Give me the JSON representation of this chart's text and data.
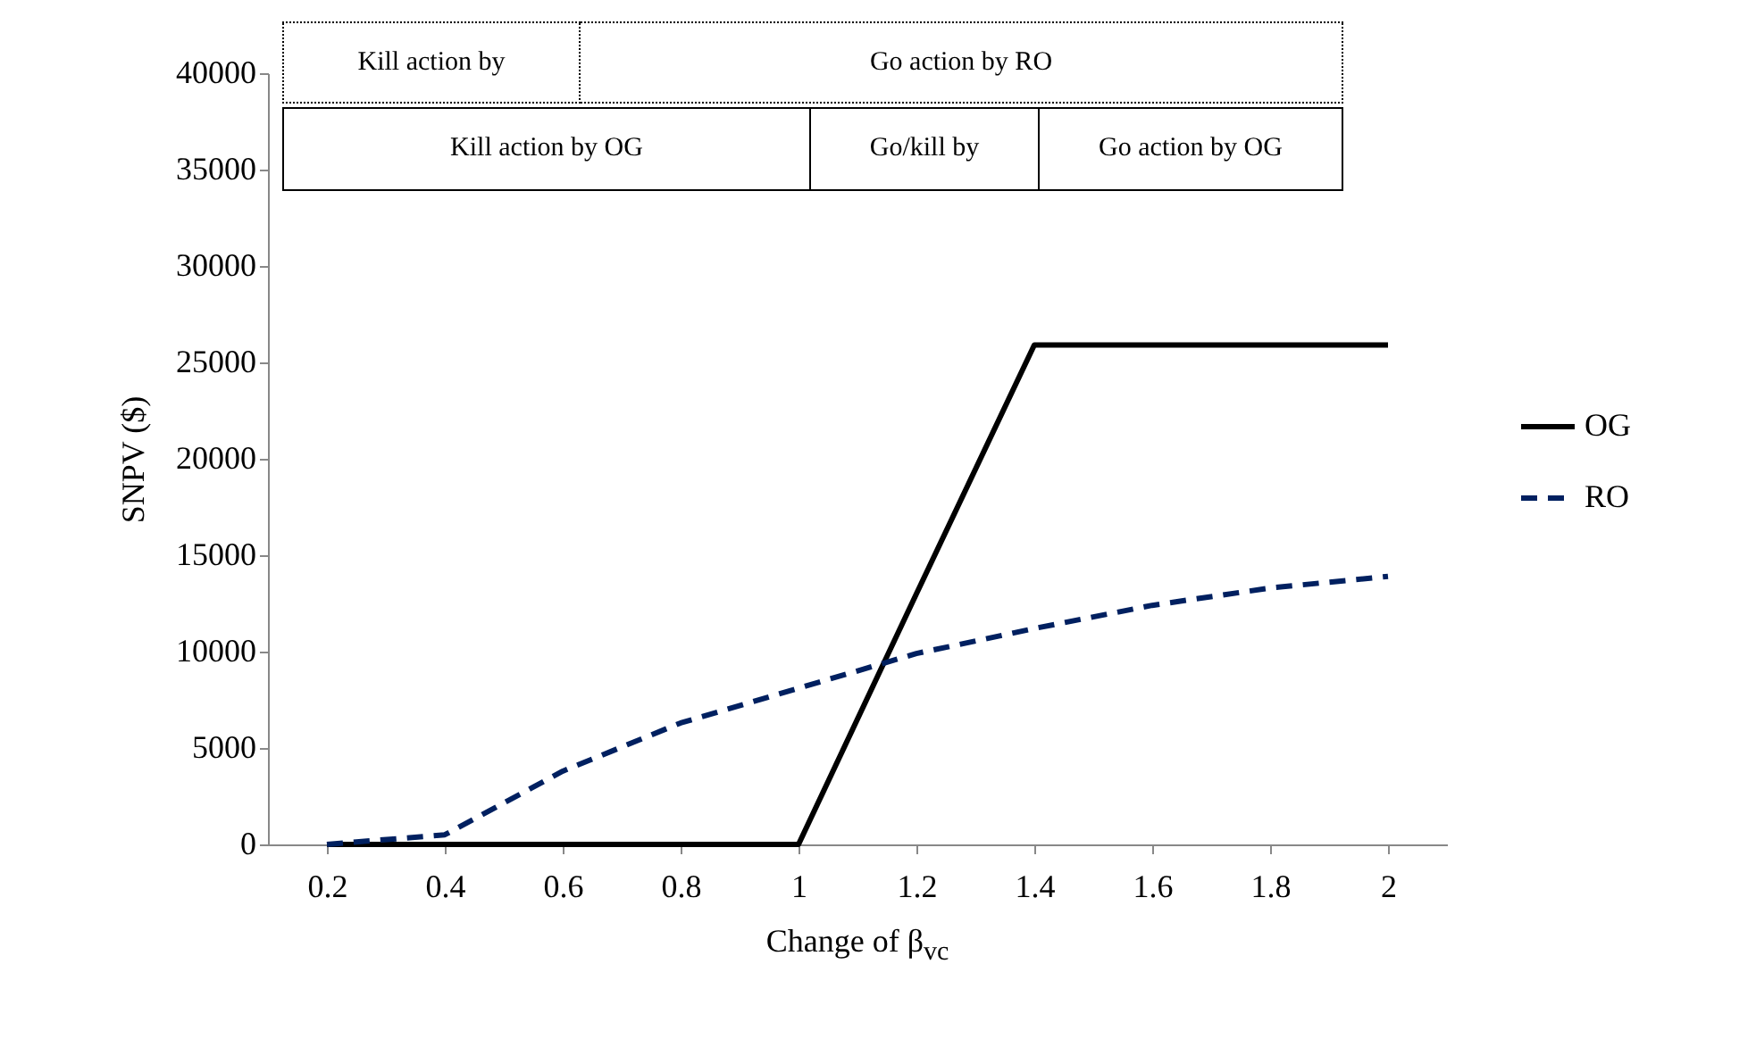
{
  "chart_data": {
    "type": "line",
    "xlabel": "Change of β$_{vc}$",
    "ylabel": "SNPV ($)",
    "categories": [
      "0.2",
      "0.4",
      "0.6",
      "0.8",
      "1",
      "1.2",
      "1.4",
      "1.6",
      "1.8",
      "2"
    ],
    "series": [
      {
        "name": "OG",
        "color": "#000000",
        "line_style": "solid",
        "values": [
          0,
          0,
          0,
          0,
          0,
          13000,
          25900,
          25900,
          25900,
          25900
        ]
      },
      {
        "name": "RO",
        "color": "#002060",
        "line_style": "dashed",
        "values": [
          0,
          500,
          3800,
          6300,
          8100,
          9900,
          11200,
          12400,
          13300,
          13900
        ]
      }
    ],
    "ylim": [
      0,
      40000
    ],
    "yticks": [
      0,
      5000,
      10000,
      15000,
      20000,
      25000,
      30000,
      35000,
      40000
    ],
    "legend": "right",
    "marker": "none",
    "annotations": [
      "Kill action by",
      "Go action by RO",
      "Kill action by OG",
      "Go/kill by",
      "Go action by OG"
    ]
  }
}
